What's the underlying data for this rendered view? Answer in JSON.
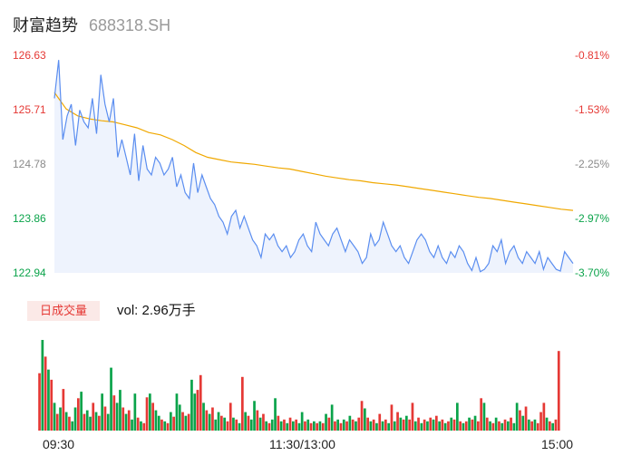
{
  "header": {
    "title": "财富趋势",
    "code": "688318.SH"
  },
  "volume": {
    "badge": "日成交量",
    "text": "vol: 2.96万手"
  },
  "colors": {
    "up": "#e53935",
    "down": "#0aa34a",
    "price": "#5b8ef0",
    "avg": "#f0a800",
    "area": "#eef3fd"
  },
  "chart_data": {
    "type": "line",
    "title": "",
    "xlabel": "",
    "ylabel": "",
    "ylim": [
      122.94,
      126.63
    ],
    "y_ticks": [
      "126.63",
      "125.71",
      "124.78",
      "123.86",
      "122.94"
    ],
    "pct_ticks": [
      "-0.81%",
      "-1.53%",
      "-2.25%",
      "-2.97%",
      "-3.70%"
    ],
    "x_ticks": [
      "09:30",
      "11:30/13:00",
      "15:00"
    ],
    "price": [
      125.9,
      126.55,
      125.2,
      125.6,
      125.8,
      125.1,
      125.7,
      125.5,
      125.4,
      125.9,
      125.3,
      126.3,
      125.8,
      125.5,
      125.9,
      124.9,
      125.2,
      124.9,
      124.6,
      125.3,
      124.5,
      125.1,
      124.7,
      124.6,
      124.9,
      124.8,
      124.6,
      124.7,
      124.9,
      124.4,
      124.6,
      124.3,
      124.2,
      124.8,
      124.3,
      124.6,
      124.4,
      124.2,
      124.1,
      123.9,
      123.8,
      123.6,
      123.9,
      124.0,
      123.7,
      123.9,
      123.7,
      123.5,
      123.4,
      123.2,
      123.6,
      123.5,
      123.6,
      123.4,
      123.3,
      123.4,
      123.2,
      123.3,
      123.5,
      123.6,
      123.4,
      123.3,
      123.8,
      123.6,
      123.5,
      123.4,
      123.6,
      123.7,
      123.5,
      123.3,
      123.5,
      123.4,
      123.3,
      123.1,
      123.2,
      123.6,
      123.4,
      123.5,
      123.8,
      123.6,
      123.4,
      123.3,
      123.4,
      123.2,
      123.1,
      123.3,
      123.5,
      123.6,
      123.5,
      123.3,
      123.2,
      123.4,
      123.2,
      123.1,
      123.3,
      123.2,
      123.4,
      123.3,
      123.1,
      122.98,
      123.2,
      122.96,
      123.0,
      123.1,
      123.4,
      123.3,
      123.5,
      123.1,
      123.3,
      123.4,
      123.2,
      123.1,
      123.3,
      123.2,
      123.1,
      123.3,
      123.0,
      123.2,
      123.1,
      123.0,
      122.97,
      123.3,
      123.2,
      123.1
    ],
    "avg": [
      126.0,
      125.72,
      125.6,
      125.55,
      125.52,
      125.5,
      125.45,
      125.4,
      125.32,
      125.28,
      125.2,
      125.1,
      124.98,
      124.9,
      124.86,
      124.82,
      124.8,
      124.78,
      124.75,
      124.72,
      124.7,
      124.66,
      124.62,
      124.58,
      124.55,
      124.52,
      124.5,
      124.47,
      124.45,
      124.43,
      124.4,
      124.37,
      124.34,
      124.31,
      124.28,
      124.25,
      124.22,
      124.2,
      124.17,
      124.14,
      124.11,
      124.08,
      124.05,
      124.02,
      124.0
    ],
    "volume": [
      {
        "v": 62,
        "d": "up"
      },
      {
        "v": 98,
        "d": "down"
      },
      {
        "v": 80,
        "d": "up"
      },
      {
        "v": 66,
        "d": "down"
      },
      {
        "v": 55,
        "d": "up"
      },
      {
        "v": 30,
        "d": "down"
      },
      {
        "v": 18,
        "d": "up"
      },
      {
        "v": 25,
        "d": "down"
      },
      {
        "v": 45,
        "d": "up"
      },
      {
        "v": 20,
        "d": "down"
      },
      {
        "v": 15,
        "d": "up"
      },
      {
        "v": 10,
        "d": "down"
      },
      {
        "v": 25,
        "d": "down"
      },
      {
        "v": 35,
        "d": "up"
      },
      {
        "v": 42,
        "d": "down"
      },
      {
        "v": 18,
        "d": "up"
      },
      {
        "v": 22,
        "d": "down"
      },
      {
        "v": 15,
        "d": "down"
      },
      {
        "v": 30,
        "d": "up"
      },
      {
        "v": 20,
        "d": "down"
      },
      {
        "v": 16,
        "d": "up"
      },
      {
        "v": 40,
        "d": "down"
      },
      {
        "v": 26,
        "d": "up"
      },
      {
        "v": 18,
        "d": "down"
      },
      {
        "v": 68,
        "d": "down"
      },
      {
        "v": 38,
        "d": "up"
      },
      {
        "v": 30,
        "d": "down"
      },
      {
        "v": 44,
        "d": "down"
      },
      {
        "v": 25,
        "d": "up"
      },
      {
        "v": 18,
        "d": "down"
      },
      {
        "v": 22,
        "d": "up"
      },
      {
        "v": 12,
        "d": "down"
      },
      {
        "v": 40,
        "d": "down"
      },
      {
        "v": 14,
        "d": "up"
      },
      {
        "v": 10,
        "d": "down"
      },
      {
        "v": 8,
        "d": "up"
      },
      {
        "v": 36,
        "d": "up"
      },
      {
        "v": 40,
        "d": "down"
      },
      {
        "v": 30,
        "d": "up"
      },
      {
        "v": 22,
        "d": "down"
      },
      {
        "v": 16,
        "d": "down"
      },
      {
        "v": 12,
        "d": "up"
      },
      {
        "v": 10,
        "d": "down"
      },
      {
        "v": 8,
        "d": "up"
      },
      {
        "v": 20,
        "d": "down"
      },
      {
        "v": 15,
        "d": "up"
      },
      {
        "v": 40,
        "d": "down"
      },
      {
        "v": 28,
        "d": "down"
      },
      {
        "v": 20,
        "d": "up"
      },
      {
        "v": 16,
        "d": "down"
      },
      {
        "v": 18,
        "d": "up"
      },
      {
        "v": 55,
        "d": "down"
      },
      {
        "v": 40,
        "d": "down"
      },
      {
        "v": 44,
        "d": "up"
      },
      {
        "v": 60,
        "d": "up"
      },
      {
        "v": 30,
        "d": "down"
      },
      {
        "v": 22,
        "d": "up"
      },
      {
        "v": 18,
        "d": "down"
      },
      {
        "v": 25,
        "d": "up"
      },
      {
        "v": 12,
        "d": "down"
      },
      {
        "v": 20,
        "d": "down"
      },
      {
        "v": 16,
        "d": "up"
      },
      {
        "v": 14,
        "d": "down"
      },
      {
        "v": 10,
        "d": "up"
      },
      {
        "v": 30,
        "d": "up"
      },
      {
        "v": 14,
        "d": "down"
      },
      {
        "v": 12,
        "d": "up"
      },
      {
        "v": 8,
        "d": "down"
      },
      {
        "v": 58,
        "d": "up"
      },
      {
        "v": 20,
        "d": "down"
      },
      {
        "v": 16,
        "d": "up"
      },
      {
        "v": 12,
        "d": "down"
      },
      {
        "v": 32,
        "d": "down"
      },
      {
        "v": 22,
        "d": "up"
      },
      {
        "v": 14,
        "d": "down"
      },
      {
        "v": 18,
        "d": "up"
      },
      {
        "v": 10,
        "d": "down"
      },
      {
        "v": 8,
        "d": "up"
      },
      {
        "v": 12,
        "d": "down"
      },
      {
        "v": 35,
        "d": "down"
      },
      {
        "v": 16,
        "d": "up"
      },
      {
        "v": 10,
        "d": "down"
      },
      {
        "v": 12,
        "d": "up"
      },
      {
        "v": 8,
        "d": "down"
      },
      {
        "v": 14,
        "d": "up"
      },
      {
        "v": 10,
        "d": "down"
      },
      {
        "v": 12,
        "d": "up"
      },
      {
        "v": 8,
        "d": "down"
      },
      {
        "v": 20,
        "d": "down"
      },
      {
        "v": 10,
        "d": "up"
      },
      {
        "v": 12,
        "d": "down"
      },
      {
        "v": 8,
        "d": "up"
      },
      {
        "v": 10,
        "d": "down"
      },
      {
        "v": 8,
        "d": "up"
      },
      {
        "v": 10,
        "d": "down"
      },
      {
        "v": 8,
        "d": "up"
      },
      {
        "v": 18,
        "d": "down"
      },
      {
        "v": 14,
        "d": "up"
      },
      {
        "v": 28,
        "d": "down"
      },
      {
        "v": 10,
        "d": "up"
      },
      {
        "v": 12,
        "d": "down"
      },
      {
        "v": 8,
        "d": "up"
      },
      {
        "v": 12,
        "d": "down"
      },
      {
        "v": 10,
        "d": "up"
      },
      {
        "v": 16,
        "d": "down"
      },
      {
        "v": 12,
        "d": "up"
      },
      {
        "v": 10,
        "d": "down"
      },
      {
        "v": 14,
        "d": "up"
      },
      {
        "v": 32,
        "d": "up"
      },
      {
        "v": 24,
        "d": "down"
      },
      {
        "v": 14,
        "d": "up"
      },
      {
        "v": 10,
        "d": "down"
      },
      {
        "v": 12,
        "d": "up"
      },
      {
        "v": 8,
        "d": "down"
      },
      {
        "v": 18,
        "d": "up"
      },
      {
        "v": 10,
        "d": "down"
      },
      {
        "v": 12,
        "d": "up"
      },
      {
        "v": 8,
        "d": "down"
      },
      {
        "v": 28,
        "d": "up"
      },
      {
        "v": 10,
        "d": "down"
      },
      {
        "v": 20,
        "d": "up"
      },
      {
        "v": 14,
        "d": "down"
      },
      {
        "v": 12,
        "d": "up"
      },
      {
        "v": 16,
        "d": "down"
      },
      {
        "v": 12,
        "d": "up"
      },
      {
        "v": 30,
        "d": "up"
      },
      {
        "v": 10,
        "d": "down"
      },
      {
        "v": 14,
        "d": "up"
      },
      {
        "v": 8,
        "d": "down"
      },
      {
        "v": 12,
        "d": "up"
      },
      {
        "v": 10,
        "d": "down"
      },
      {
        "v": 14,
        "d": "up"
      },
      {
        "v": 12,
        "d": "down"
      },
      {
        "v": 16,
        "d": "up"
      },
      {
        "v": 10,
        "d": "down"
      },
      {
        "v": 12,
        "d": "up"
      },
      {
        "v": 8,
        "d": "down"
      },
      {
        "v": 10,
        "d": "up"
      },
      {
        "v": 14,
        "d": "down"
      },
      {
        "v": 12,
        "d": "up"
      },
      {
        "v": 30,
        "d": "down"
      },
      {
        "v": 10,
        "d": "up"
      },
      {
        "v": 8,
        "d": "down"
      },
      {
        "v": 10,
        "d": "up"
      },
      {
        "v": 14,
        "d": "down"
      },
      {
        "v": 12,
        "d": "up"
      },
      {
        "v": 16,
        "d": "down"
      },
      {
        "v": 10,
        "d": "up"
      },
      {
        "v": 35,
        "d": "up"
      },
      {
        "v": 30,
        "d": "down"
      },
      {
        "v": 14,
        "d": "up"
      },
      {
        "v": 10,
        "d": "down"
      },
      {
        "v": 8,
        "d": "up"
      },
      {
        "v": 14,
        "d": "down"
      },
      {
        "v": 10,
        "d": "up"
      },
      {
        "v": 8,
        "d": "down"
      },
      {
        "v": 12,
        "d": "up"
      },
      {
        "v": 10,
        "d": "down"
      },
      {
        "v": 14,
        "d": "up"
      },
      {
        "v": 8,
        "d": "down"
      },
      {
        "v": 30,
        "d": "down"
      },
      {
        "v": 22,
        "d": "up"
      },
      {
        "v": 16,
        "d": "down"
      },
      {
        "v": 26,
        "d": "up"
      },
      {
        "v": 12,
        "d": "down"
      },
      {
        "v": 10,
        "d": "up"
      },
      {
        "v": 12,
        "d": "down"
      },
      {
        "v": 8,
        "d": "up"
      },
      {
        "v": 20,
        "d": "up"
      },
      {
        "v": 30,
        "d": "up"
      },
      {
        "v": 14,
        "d": "down"
      },
      {
        "v": 10,
        "d": "up"
      },
      {
        "v": 8,
        "d": "down"
      },
      {
        "v": 12,
        "d": "up"
      },
      {
        "v": 86,
        "d": "up"
      }
    ]
  }
}
